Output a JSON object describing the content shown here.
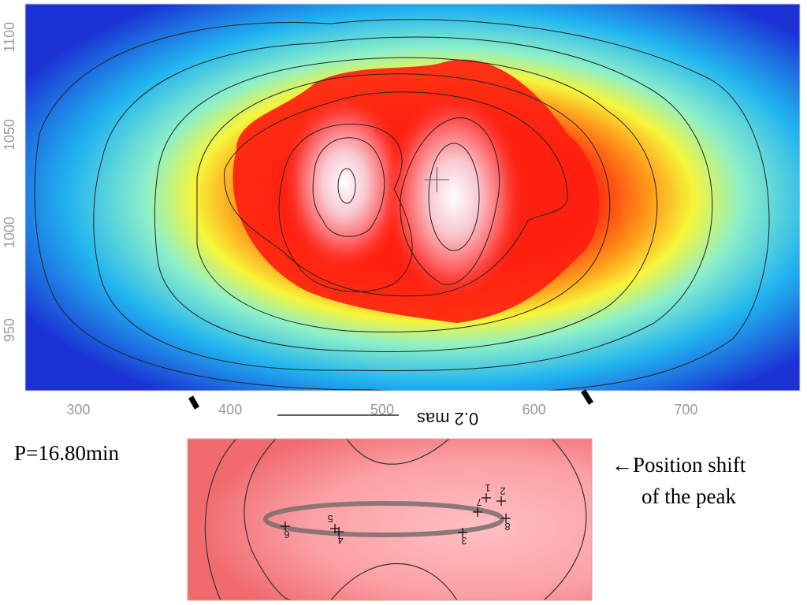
{
  "chart_data": [
    {
      "type": "heatmap",
      "title": "",
      "xlabel": "",
      "ylabel": "",
      "x_ticks": [
        300,
        400,
        500,
        600,
        700
      ],
      "y_ticks": [
        950,
        1000,
        1050,
        1100
      ],
      "xlim": [
        265,
        775
      ],
      "ylim": [
        919,
        1117
      ],
      "colormap": [
        "#1b33d4",
        "#21b4f0",
        "#8ef0c8",
        "#f6f53a",
        "#ff9a1a",
        "#ff2010",
        "#f8c8d0",
        "#ffffff"
      ],
      "peaks": [
        {
          "x": 457,
          "y": 1027,
          "marker": "none"
        },
        {
          "x": 536,
          "y": 1027,
          "marker": "plus"
        }
      ],
      "contours": 9,
      "scale_bar": {
        "label": "0.2 mas"
      }
    },
    {
      "type": "scatter",
      "title": "",
      "points": [
        {
          "label": "1",
          "x": 617,
          "y": 632
        },
        {
          "label": "2",
          "x": 636,
          "y": 636
        },
        {
          "label": "3",
          "x": 587,
          "y": 676
        },
        {
          "label": "4",
          "x": 430,
          "y": 675
        },
        {
          "label": "5",
          "x": 425,
          "y": 671
        },
        {
          "label": "6",
          "x": 362,
          "y": 668
        },
        {
          "label": "7",
          "x": 606,
          "y": 650
        },
        {
          "label": "8",
          "x": 642,
          "y": 658
        }
      ]
    }
  ],
  "labels": {
    "period": "P=16.80min",
    "note_line1": "←Position shift",
    "note_line2": "of the peak"
  }
}
